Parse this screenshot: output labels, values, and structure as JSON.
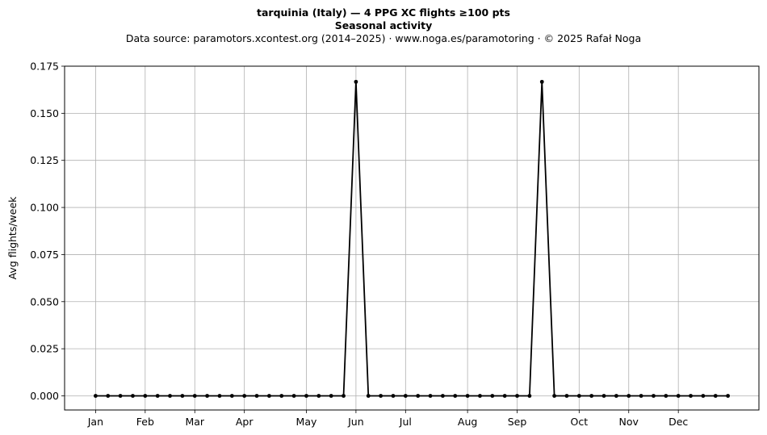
{
  "header": {
    "title": "tarquinia (Italy)  —  4 PPG XC flights ≥100 pts",
    "subtitle": "Seasonal activity",
    "source": "Data source: paramotors.xcontest.org (2014–2025)  ·  www.noga.es/paramotoring  ·  © 2025 Rafał Noga"
  },
  "chart_data": {
    "type": "line",
    "title": "tarquinia (Italy)  —  4 PPG XC flights ≥100 pts",
    "subtitle": "Seasonal activity",
    "xlabel": "",
    "ylabel": "Avg flights/week",
    "x": [
      1,
      2,
      3,
      4,
      5,
      6,
      7,
      8,
      9,
      10,
      11,
      12,
      13,
      14,
      15,
      16,
      17,
      18,
      19,
      20,
      21,
      22,
      23,
      24,
      25,
      26,
      27,
      28,
      29,
      30,
      31,
      32,
      33,
      34,
      35,
      36,
      37,
      38,
      39,
      40,
      41,
      42,
      43,
      44,
      45,
      46,
      47,
      48,
      49,
      50,
      51,
      52
    ],
    "series": [
      {
        "color": "#000000",
        "values": [
          0,
          0,
          0,
          0,
          0,
          0,
          0,
          0,
          0,
          0,
          0,
          0,
          0,
          0,
          0,
          0,
          0,
          0,
          0,
          0,
          0,
          0.1667,
          0,
          0,
          0,
          0,
          0,
          0,
          0,
          0,
          0,
          0,
          0,
          0,
          0,
          0,
          0.1667,
          0,
          0,
          0,
          0,
          0,
          0,
          0,
          0,
          0,
          0,
          0,
          0,
          0,
          0,
          0
        ]
      }
    ],
    "ylim": [
      -0.0075,
      0.175
    ],
    "xlim": [
      -1.5,
      54.5
    ],
    "yticks": [
      0.0,
      0.025,
      0.05,
      0.075,
      0.1,
      0.125,
      0.15,
      0.175
    ],
    "ytick_labels": [
      "0.000",
      "0.025",
      "0.050",
      "0.075",
      "0.100",
      "0.125",
      "0.150",
      "0.175"
    ],
    "xticks": [
      1,
      5,
      9,
      13,
      18,
      22,
      26,
      31,
      35,
      40,
      44,
      48
    ],
    "xtick_labels": [
      "Jan",
      "Feb",
      "Mar",
      "Apr",
      "May",
      "Jun",
      "Jul",
      "Aug",
      "Sep",
      "Oct",
      "Nov",
      "Dec"
    ],
    "grid": true,
    "legend": "none"
  }
}
